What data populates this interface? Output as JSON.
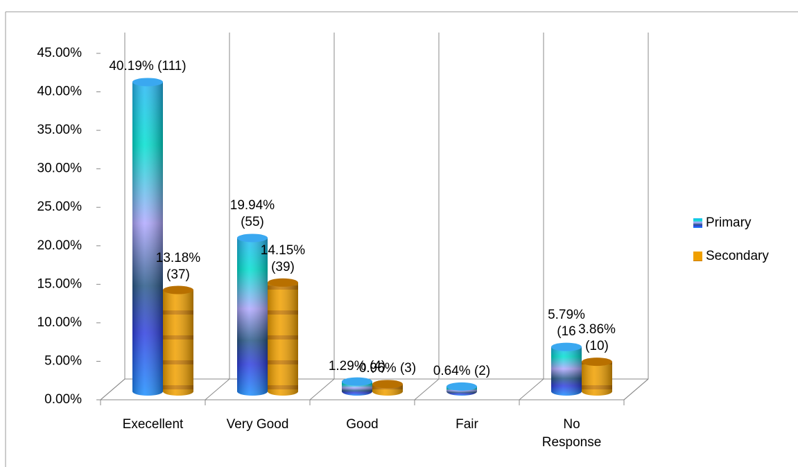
{
  "chart_data": {
    "type": "bar3d",
    "categories": [
      "Execellent",
      "Very Good",
      "Good",
      "Fair",
      "No Response"
    ],
    "series": [
      {
        "name": "Primary",
        "color": "#1e90ff",
        "values": [
          40.19,
          19.94,
          1.29,
          0.64,
          5.79
        ],
        "value_labels": [
          "40.19% (111)",
          "19.94% (55)",
          "1.29% (4)",
          "0.64% (2)",
          "5.79% (16"
        ]
      },
      {
        "name": "Secondary",
        "color": "#e69500",
        "values": [
          13.18,
          14.15,
          0.96,
          null,
          3.86
        ],
        "value_labels": [
          "13.18% (37)",
          "14.15% (39)",
          "0.96% (3)",
          null,
          "3.86% (10)"
        ]
      }
    ],
    "ylim": [
      0,
      45
    ],
    "yticks": [
      {
        "value": 0,
        "label": "0.00%"
      },
      {
        "value": 5,
        "label": "5.00%"
      },
      {
        "value": 10,
        "label": "10.00%"
      },
      {
        "value": 15,
        "label": "15.00%"
      },
      {
        "value": 20,
        "label": "20.00%"
      },
      {
        "value": 25,
        "label": "25.00%"
      },
      {
        "value": 30,
        "label": "30.00%"
      },
      {
        "value": 35,
        "label": "35.00%"
      },
      {
        "value": 40,
        "label": "40.00%"
      },
      {
        "value": 45,
        "label": "45.00%"
      }
    ],
    "grid": true,
    "legend": "right"
  }
}
